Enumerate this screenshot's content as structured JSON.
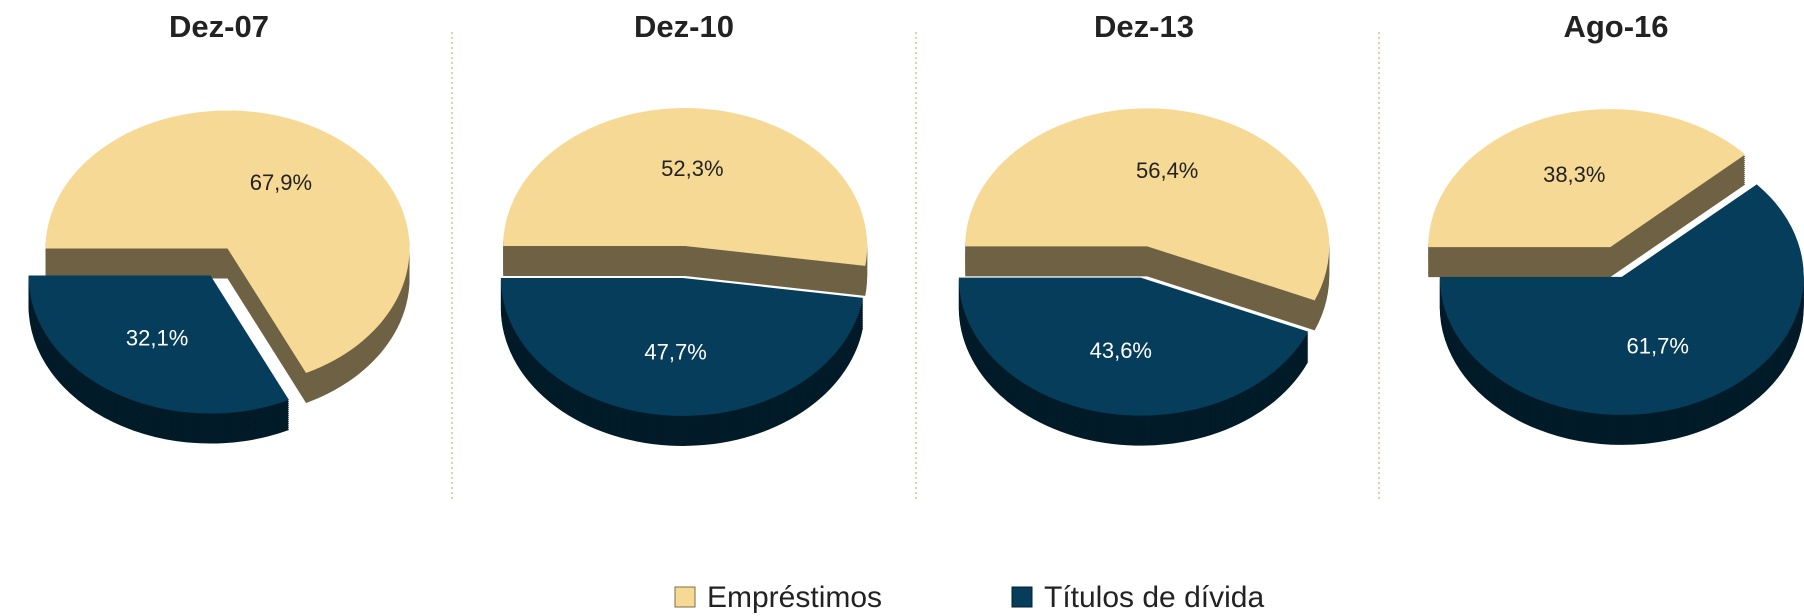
{
  "chart_data": [
    {
      "type": "pie",
      "title": "Dez-07",
      "categories": [
        "Empréstimos",
        "Títulos de dívida"
      ],
      "values": [
        67.9,
        32.1
      ],
      "value_labels": [
        "67,9%",
        "32,1%"
      ],
      "colors": [
        "#f7d996",
        "#053d5a"
      ]
    },
    {
      "type": "pie",
      "title": "Dez-10",
      "categories": [
        "Empréstimos",
        "Títulos de dívida"
      ],
      "values": [
        52.3,
        47.7
      ],
      "value_labels": [
        "52,3%",
        "47,7%"
      ],
      "colors": [
        "#f7d996",
        "#053d5a"
      ]
    },
    {
      "type": "pie",
      "title": "Dez-13",
      "categories": [
        "Empréstimos",
        "Títulos de dívida"
      ],
      "values": [
        56.4,
        43.6
      ],
      "value_labels": [
        "56,4%",
        "43,6%"
      ],
      "colors": [
        "#f7d996",
        "#053d5a"
      ]
    },
    {
      "type": "pie",
      "title": "Ago-16",
      "categories": [
        "Empréstimos",
        "Títulos de dívida"
      ],
      "values": [
        38.3,
        61.7
      ],
      "value_labels": [
        "38,3%",
        "61,7%"
      ],
      "colors": [
        "#f7d996",
        "#053d5a"
      ]
    }
  ]
}
